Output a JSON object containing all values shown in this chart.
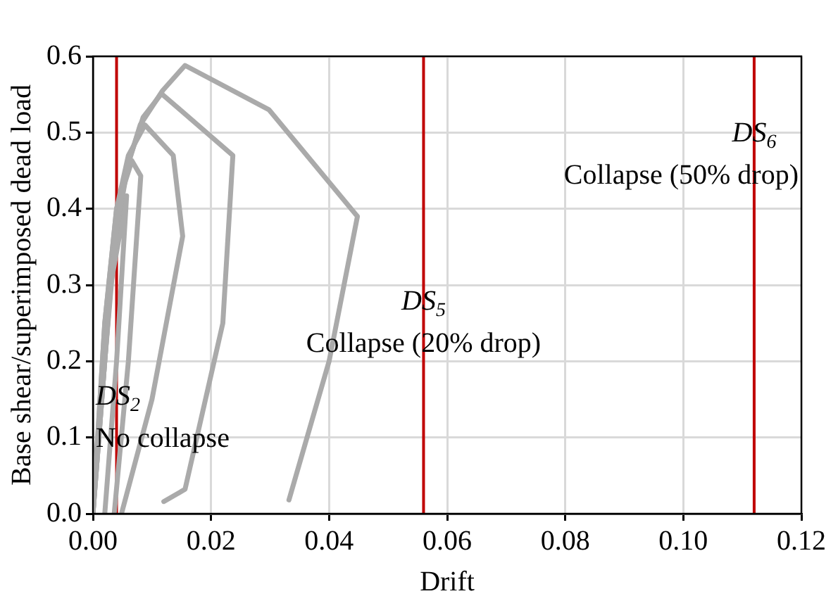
{
  "chart_data": {
    "type": "line",
    "xlabel": "Drift",
    "ylabel": "Base shear/superimposed dead load",
    "xlim": [
      0,
      0.12
    ],
    "xticks": [
      {
        "value": 0,
        "label": "0.00"
      },
      {
        "value": 0.02,
        "label": "0.02"
      },
      {
        "value": 0.04,
        "label": "0.04"
      },
      {
        "value": 0.06,
        "label": "0.06"
      },
      {
        "value": 0.08,
        "label": "0.08"
      },
      {
        "value": 0.1,
        "label": "0.10"
      },
      {
        "value": 0.12,
        "label": "0.12"
      }
    ],
    "ylim": [
      0,
      0.6
    ],
    "yticks": [
      {
        "value": 0,
        "label": "0.0"
      },
      {
        "value": 0.1,
        "label": "0.1"
      },
      {
        "value": 0.2,
        "label": "0.2"
      },
      {
        "value": 0.3,
        "label": "0.3"
      },
      {
        "value": 0.4,
        "label": "0.4"
      },
      {
        "value": 0.5,
        "label": "0.5"
      },
      {
        "value": 0.6,
        "label": "0.6"
      }
    ],
    "grid": true,
    "legend": false,
    "marker": "none",
    "line_style": "solid",
    "series": [
      {
        "color": "#aaaaaa",
        "x": [
          0,
          0.002,
          0.004,
          0.006,
          0.008,
          0.0118,
          0.0156,
          0.0298,
          0.0448,
          0.04,
          0.0332
        ],
        "values": [
          0,
          0.2,
          0.38,
          0.46,
          0.51,
          0.555,
          0.588,
          0.53,
          0.39,
          0.2,
          0.018
        ]
      },
      {
        "color": "#aaaaaa",
        "x": [
          0,
          0.002,
          0.0035,
          0.006,
          0.0085,
          0.0116,
          0.0237,
          0.022,
          0.0156,
          0.012
        ],
        "values": [
          0,
          0.2,
          0.35,
          0.46,
          0.52,
          0.551,
          0.47,
          0.25,
          0.032,
          0.016
        ]
      },
      {
        "color": "#aaaaaa",
        "x": [
          0,
          0.002,
          0.004,
          0.006,
          0.0088,
          0.0136,
          0.0152,
          0.01,
          0.0049
        ],
        "values": [
          0,
          0.25,
          0.4,
          0.47,
          0.51,
          0.47,
          0.364,
          0.15,
          0.002
        ]
      },
      {
        "color": "#aaaaaa",
        "x": [
          0,
          0.002,
          0.004,
          0.0066,
          0.0081,
          0.006,
          0.0036
        ],
        "values": [
          0,
          0.25,
          0.4,
          0.463,
          0.443,
          0.2,
          0
        ]
      },
      {
        "color": "#aaaaaa",
        "x": [
          0,
          0.003,
          0.0057,
          0.004,
          0.002
        ],
        "values": [
          0,
          0.3,
          0.417,
          0.2,
          0
        ]
      }
    ],
    "ref_lines": [
      {
        "axis": "x",
        "value": 0.004,
        "color": "#c00000"
      },
      {
        "axis": "x",
        "value": 0.056,
        "color": "#c00000"
      },
      {
        "axis": "x",
        "value": 0.112,
        "color": "#c00000"
      }
    ],
    "annotations": [
      {
        "text": "DS$_{2}$\nNo collapse",
        "x": 0.004,
        "y": 0.125
      },
      {
        "text": "DS$_{5}$\nCollapse (20% drop)",
        "x": 0.056,
        "y": 0.25
      },
      {
        "text": "DS$_{6}$\nCollapse (50% drop)",
        "x": 0.112,
        "y": 0.47
      }
    ]
  }
}
